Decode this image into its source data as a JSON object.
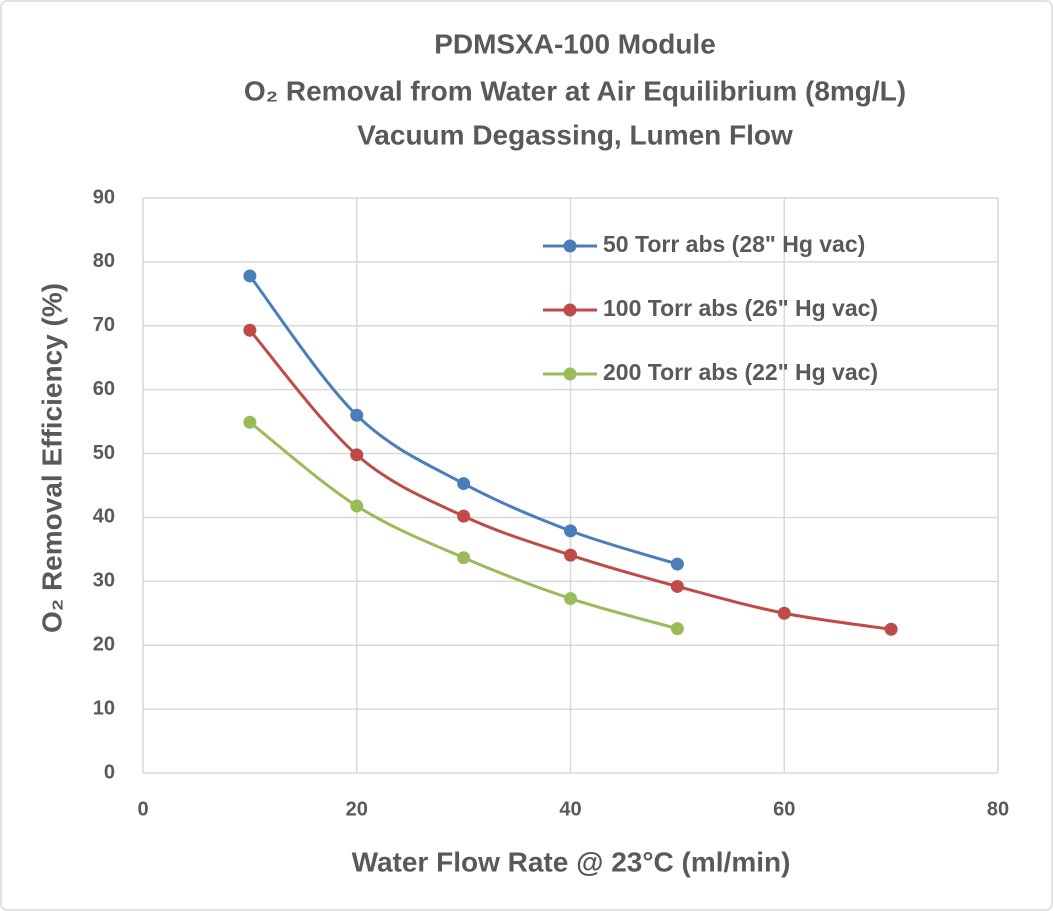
{
  "chart_data": {
    "type": "line",
    "title": [
      "PDMSXA-100 Module",
      "O₂ Removal from Water at Air Equilibrium (8mg/L)",
      "Vacuum Degassing, Lumen Flow"
    ],
    "xlabel": "Water Flow Rate @ 23°C (ml/min)",
    "ylabel": "O₂ Removal Efficiency (%)",
    "xlim": [
      0,
      80
    ],
    "xticks": [
      0,
      20,
      40,
      60,
      80
    ],
    "ylim": [
      0,
      90
    ],
    "yticks": [
      0,
      10,
      20,
      30,
      40,
      50,
      60,
      70,
      80,
      90
    ],
    "grid": true,
    "legend": "upper right",
    "smooth": true,
    "series": [
      {
        "name": "50 Torr abs (28\" Hg vac)",
        "color": "#4a7ebb",
        "x": [
          10,
          20,
          30,
          40,
          50
        ],
        "values": [
          77.8,
          56,
          45.3,
          37.9,
          32.7
        ]
      },
      {
        "name": "100 Torr abs (26\" Hg vac)",
        "color": "#be4b48",
        "x": [
          10,
          20,
          30,
          40,
          50,
          60,
          70
        ],
        "values": [
          69.3,
          49.8,
          40.2,
          34.1,
          29.2,
          25,
          22.5
        ]
      },
      {
        "name": "200 Torr abs (22\" Hg vac)",
        "color": "#9bbb59",
        "x": [
          10,
          20,
          30,
          40,
          50
        ],
        "values": [
          54.9,
          41.8,
          33.7,
          27.3,
          22.6
        ]
      }
    ]
  }
}
